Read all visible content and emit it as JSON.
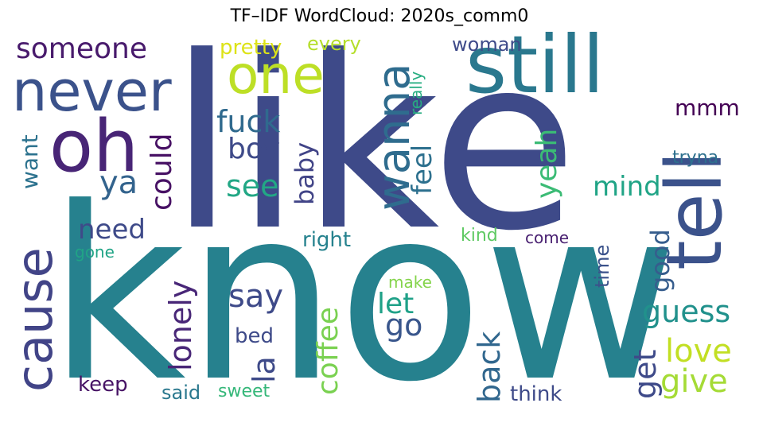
{
  "title": "TF–IDF WordCloud: 2020s_comm0",
  "words": [
    {
      "text": "like"
    },
    {
      "text": "know"
    },
    {
      "text": "still"
    },
    {
      "text": "tell"
    },
    {
      "text": "never"
    },
    {
      "text": "oh"
    },
    {
      "text": "one"
    },
    {
      "text": "wanna"
    },
    {
      "text": "cause"
    },
    {
      "text": "someone"
    },
    {
      "text": "fuck"
    },
    {
      "text": "boy"
    },
    {
      "text": "see"
    },
    {
      "text": "ya"
    },
    {
      "text": "could"
    },
    {
      "text": "want"
    },
    {
      "text": "baby"
    },
    {
      "text": "feel"
    },
    {
      "text": "yeah"
    },
    {
      "text": "mind"
    },
    {
      "text": "mmm"
    },
    {
      "text": "tryna"
    },
    {
      "text": "pretty"
    },
    {
      "text": "every"
    },
    {
      "text": "woman"
    },
    {
      "text": "really"
    },
    {
      "text": "need"
    },
    {
      "text": "gone"
    },
    {
      "text": "right"
    },
    {
      "text": "kind"
    },
    {
      "text": "come"
    },
    {
      "text": "lonely"
    },
    {
      "text": "say"
    },
    {
      "text": "make"
    },
    {
      "text": "let"
    },
    {
      "text": "go"
    },
    {
      "text": "time"
    },
    {
      "text": "good"
    },
    {
      "text": "guess"
    },
    {
      "text": "coffee"
    },
    {
      "text": "bed"
    },
    {
      "text": "la"
    },
    {
      "text": "back"
    },
    {
      "text": "get"
    },
    {
      "text": "love"
    },
    {
      "text": "give"
    },
    {
      "text": "keep"
    },
    {
      "text": "said"
    },
    {
      "text": "sweet"
    },
    {
      "text": "think"
    }
  ]
}
